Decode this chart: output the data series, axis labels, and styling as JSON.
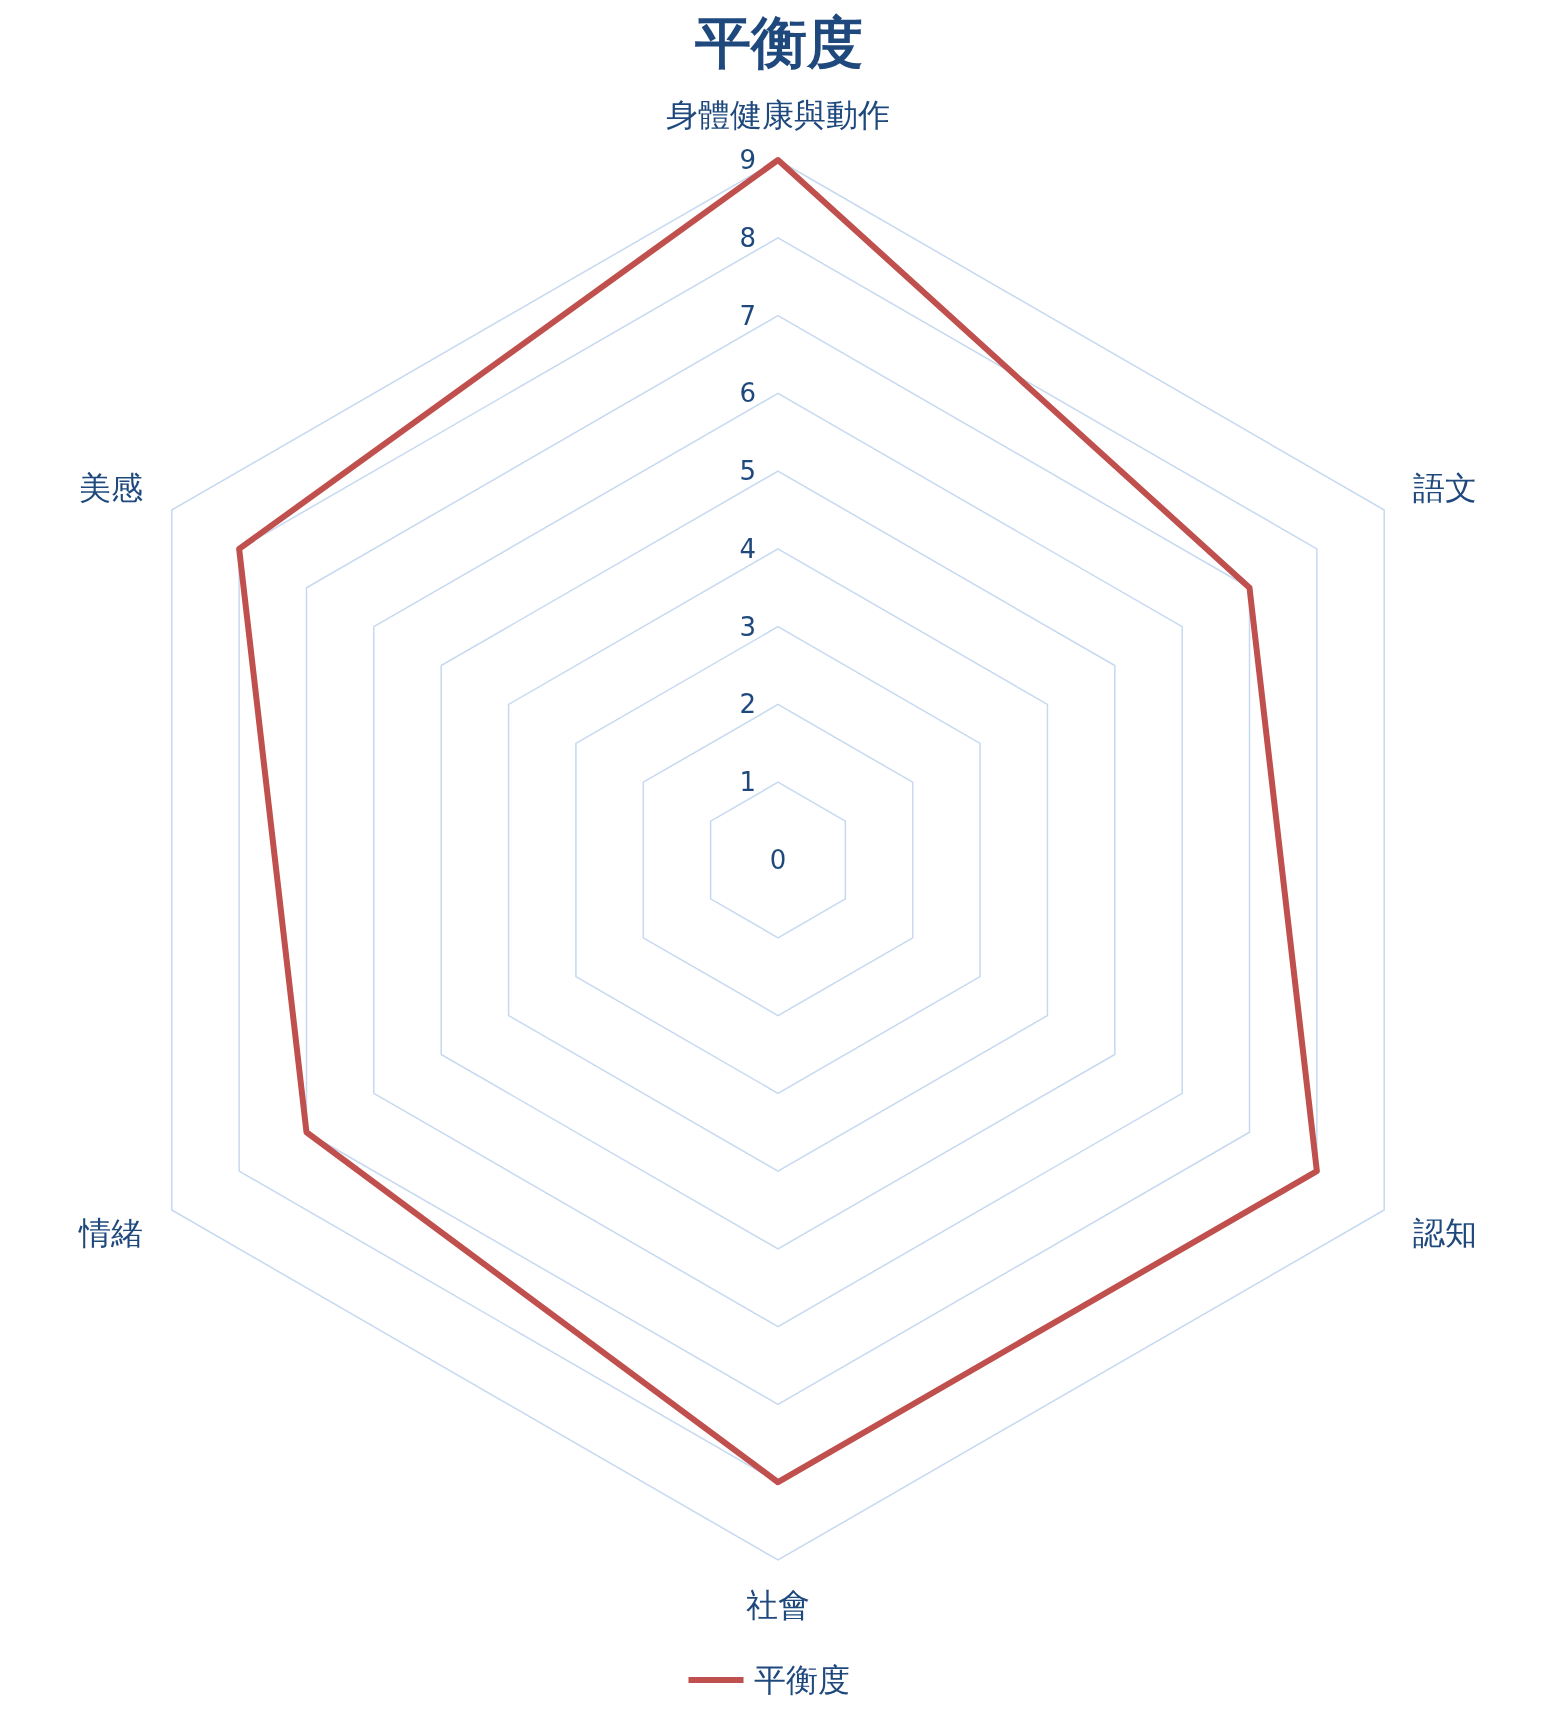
{
  "chart_data": {
    "type": "radar",
    "title": "平衡度",
    "categories": [
      "身體健康與動作",
      "語文",
      "認知",
      "社會",
      "情緒",
      "美感"
    ],
    "series": [
      {
        "name": "平衡度",
        "color": "#c0504d",
        "values": [
          9,
          7,
          8,
          8,
          7,
          8
        ]
      }
    ],
    "ylim": [
      0,
      9
    ],
    "yticks": [
      0,
      1,
      2,
      3,
      4,
      5,
      6,
      7,
      8,
      9
    ],
    "grid": true,
    "legend": "bottom"
  }
}
